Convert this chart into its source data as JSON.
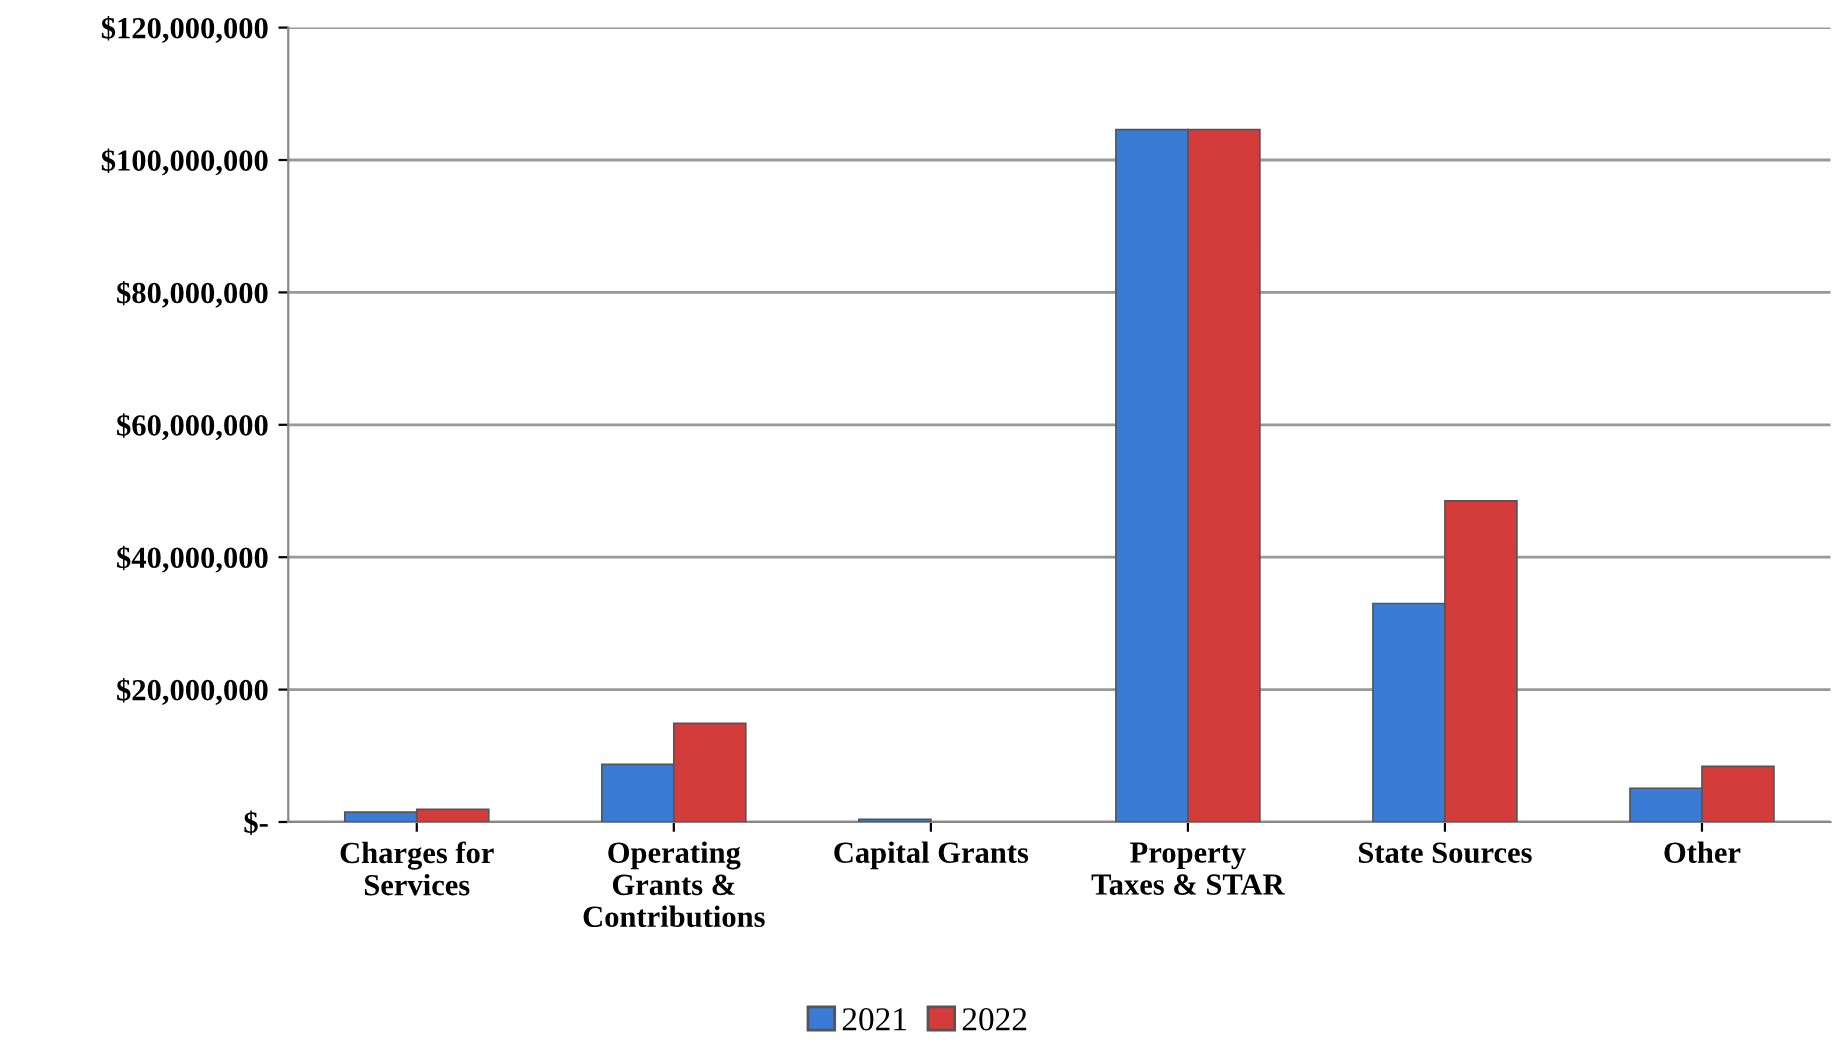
{
  "chart_data": {
    "type": "bar",
    "categories": [
      "Charges for\nServices",
      "Operating\nGrants &\nContributions",
      "Capital Grants",
      "Property\nTaxes & STAR",
      "State Sources",
      "Other"
    ],
    "series": [
      {
        "name": "2021",
        "color": "#3a7bd5",
        "values": [
          1500000,
          8700000,
          400000,
          104600000,
          33000000,
          5100000
        ]
      },
      {
        "name": "2022",
        "color": "#d43c3c",
        "values": [
          1900000,
          14900000,
          null,
          104600000,
          48500000,
          8400000
        ]
      }
    ],
    "ylim": [
      0,
      120000000
    ],
    "yticks": [
      {
        "value": 0,
        "label": "$-"
      },
      {
        "value": 20000000,
        "label": "$20,000,000"
      },
      {
        "value": 40000000,
        "label": "$40,000,000"
      },
      {
        "value": 60000000,
        "label": "$60,000,000"
      },
      {
        "value": 80000000,
        "label": "$80,000,000"
      },
      {
        "value": 100000000,
        "label": "$100,000,000"
      },
      {
        "value": 120000000,
        "label": "$120,000,000"
      }
    ],
    "grid": "y",
    "legend": "bottom"
  }
}
